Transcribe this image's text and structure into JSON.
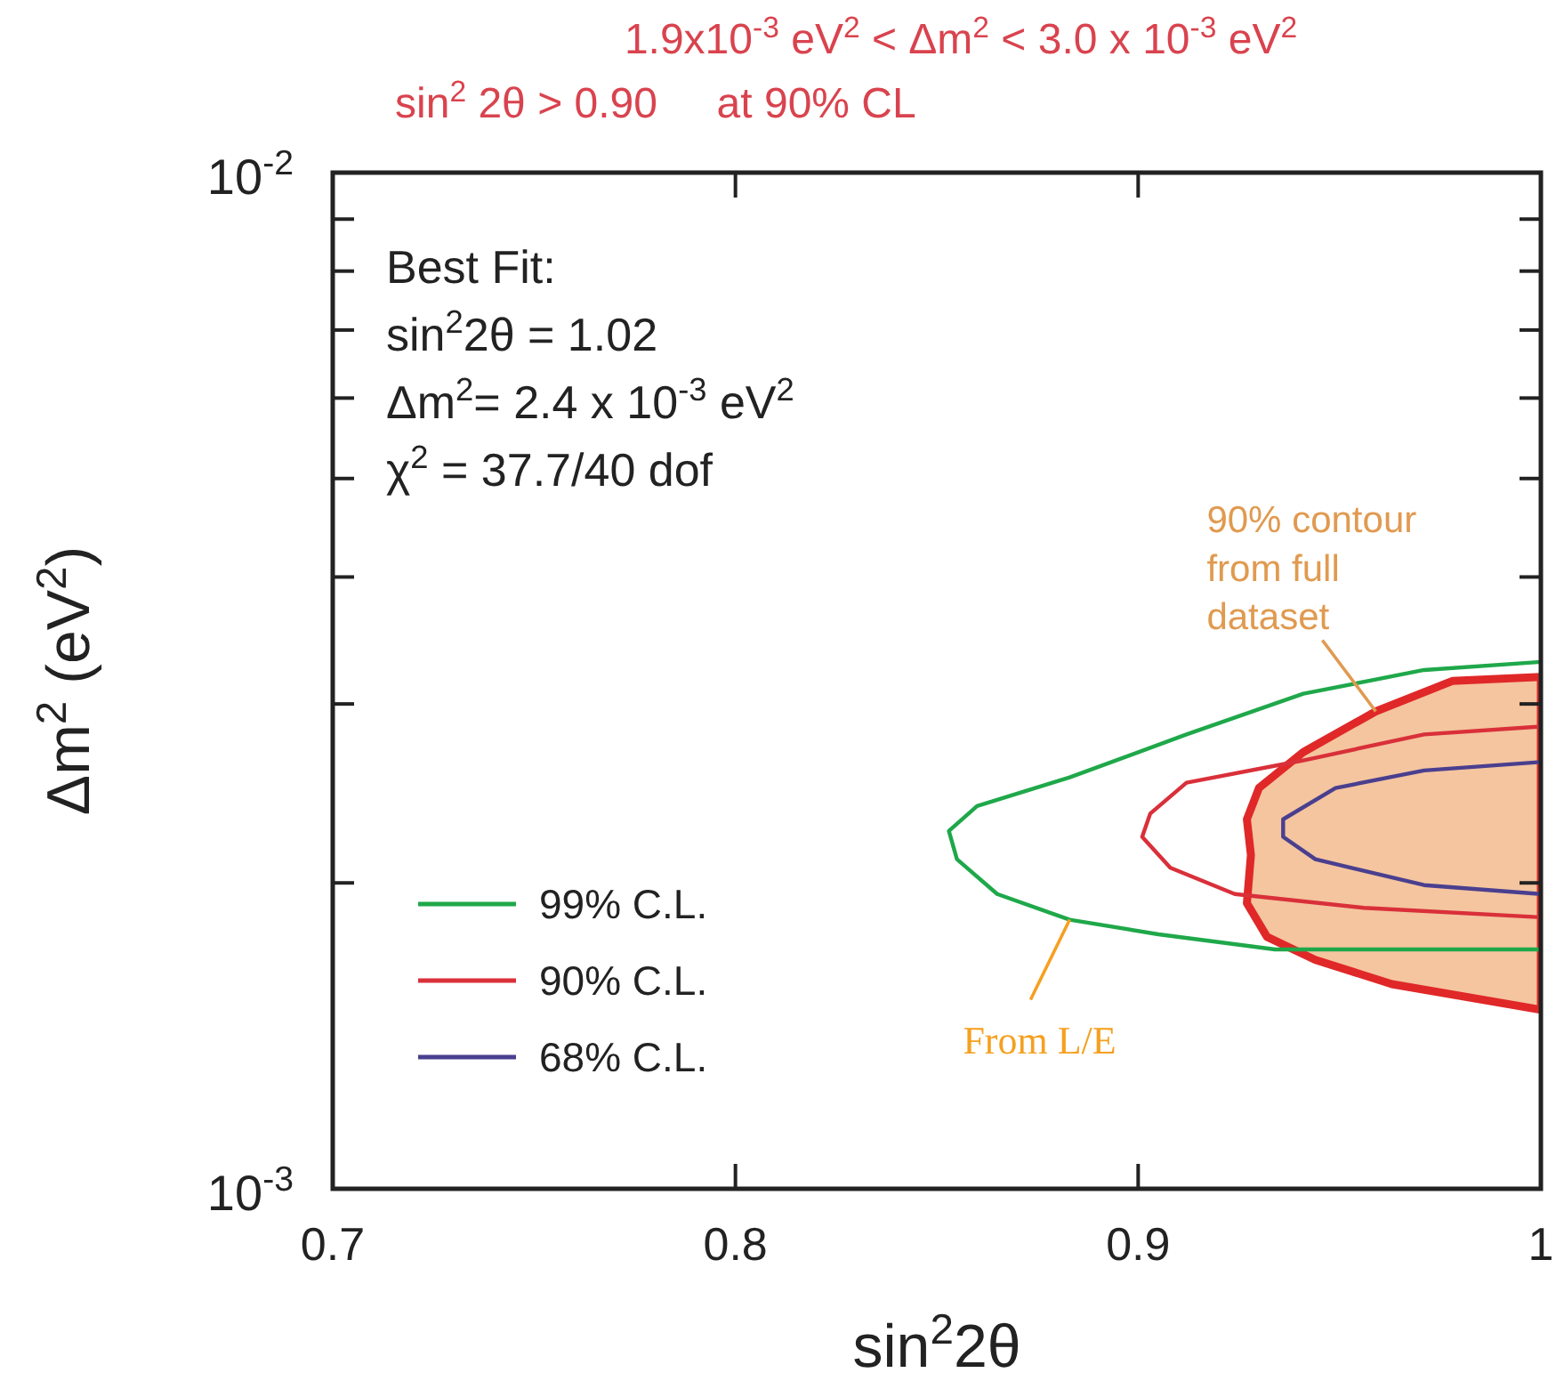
{
  "chart_data": {
    "type": "line",
    "title": "1.9x10$^{-3}$ eV$^{2}$ < Δm$^{2}$ < 3.0 x 10$^{-3}$ eV$^{2}$",
    "subtitle": "sin$^{2}$ 2θ > 0.90     at 90% CL",
    "xlabel": "sin$^{2}$2θ",
    "ylabel": "Δm$^{2}$ (eV$^{2}$)",
    "xlim": [
      0.7,
      1
    ],
    "xticks": [
      0.7,
      0.8,
      0.9,
      1
    ],
    "ylim": [
      0.001,
      0.01
    ],
    "yticks": [
      {
        "value": 0.001,
        "label": "10$^{-3}$"
      },
      {
        "value": 0.002,
        "label": null
      },
      {
        "value": 0.003,
        "label": null
      },
      {
        "value": 0.004,
        "label": null
      },
      {
        "value": 0.005,
        "label": null
      },
      {
        "value": 0.006,
        "label": null
      },
      {
        "value": 0.007,
        "label": null
      },
      {
        "value": 0.008,
        "label": null
      },
      {
        "value": 0.009,
        "label": null
      },
      {
        "value": 0.01,
        "label": "10$^{-2}$"
      }
    ],
    "log": "y",
    "grid": false,
    "legend": "bottom left",
    "marker": "none",
    "line_style": "solid",
    "series": [
      {
        "type": "area",
        "color": "#e02828",
        "x": [
          1.0,
          0.978,
          0.959,
          0.941,
          0.93,
          0.927,
          0.928,
          0.927,
          0.932,
          0.944,
          0.963,
          1.0
        ],
        "values": [
          0.00319,
          0.00316,
          0.00295,
          0.00269,
          0.00248,
          0.00231,
          0.00213,
          0.00191,
          0.00177,
          0.00168,
          0.00159,
          0.0015
        ]
      },
      {
        "name": "99% C.L.",
        "color": "#1fa84a",
        "x": [
          1.0,
          0.971,
          0.941,
          0.912,
          0.883,
          0.86,
          0.853,
          0.855,
          0.865,
          0.883,
          0.905,
          0.934,
          1.0
        ],
        "values": [
          0.0033,
          0.00324,
          0.00307,
          0.0028,
          0.00254,
          0.00238,
          0.00225,
          0.00211,
          0.00195,
          0.00184,
          0.00178,
          0.00172,
          0.00172
        ]
      },
      {
        "name": "90% C.L.",
        "color": "#d9303a",
        "x": [
          1.0,
          0.971,
          0.941,
          0.912,
          0.903,
          0.901,
          0.908,
          0.924,
          0.956,
          1.0
        ],
        "values": [
          0.00285,
          0.0028,
          0.00264,
          0.00251,
          0.00234,
          0.00222,
          0.00207,
          0.00195,
          0.00189,
          0.00185
        ]
      },
      {
        "name": "68% C.L.",
        "color": "#4a3f8f",
        "x": [
          1.0,
          0.971,
          0.949,
          0.936,
          0.936,
          0.944,
          0.971,
          1.0
        ],
        "values": [
          0.00263,
          0.00258,
          0.00248,
          0.00231,
          0.00222,
          0.00211,
          0.00199,
          0.00195
        ]
      }
    ],
    "annotations": [
      "Best Fit:",
      "sin$^{2}$2θ = 1.02",
      "Δm$^{2}$= 2.4 x 10$^{-3}$ eV$^{2}$",
      "χ$^{2}$ = 37.7/40 dof",
      {
        "text": "90% contour from full dataset",
        "x": 0.959,
        "y": 0.00295
      },
      {
        "text": "From L/E",
        "x": 0.883,
        "y": 0.00184
      }
    ]
  }
}
